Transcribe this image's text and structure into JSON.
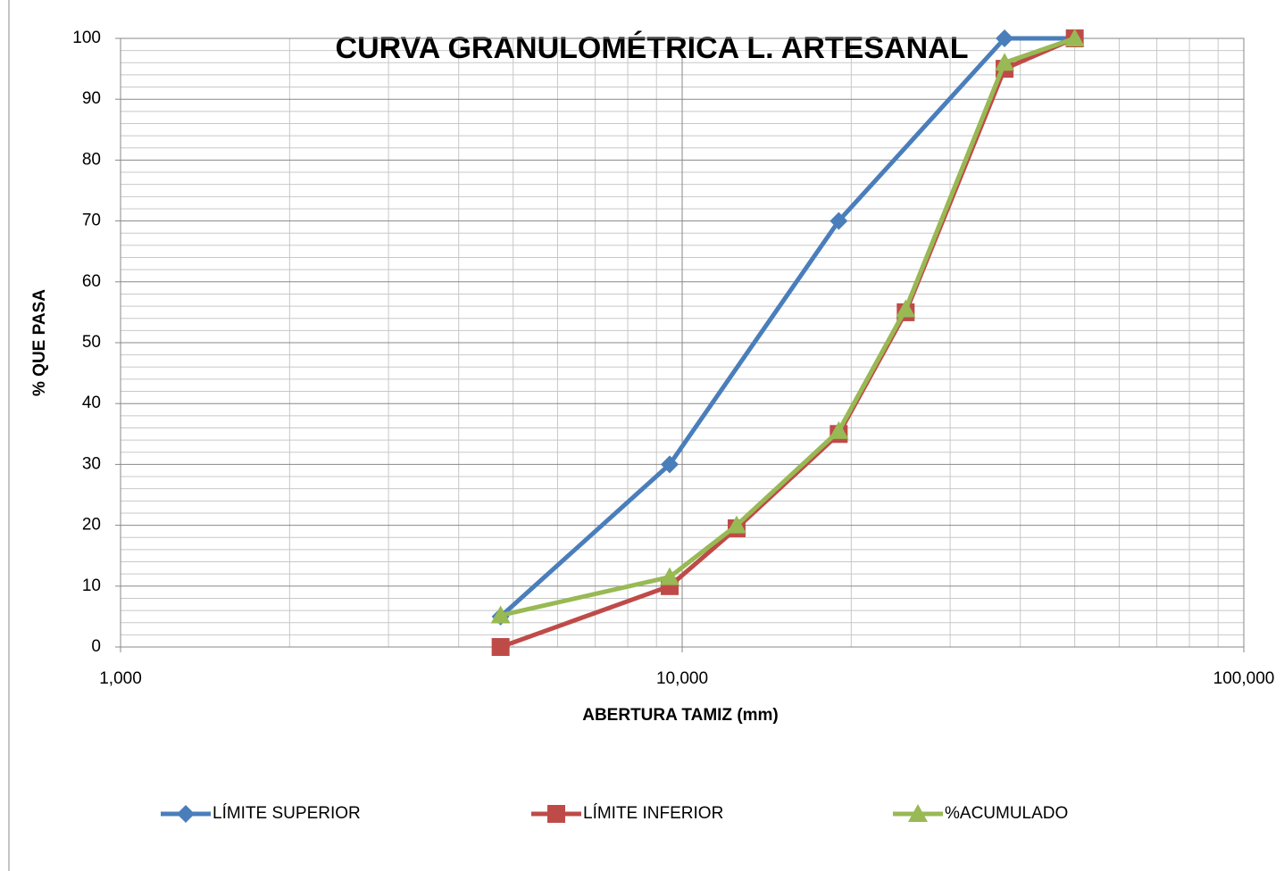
{
  "chart_data": {
    "type": "line",
    "title": "CURVA GRANULOMÉTRICA L. ARTESANAL",
    "x_label": "ABERTURA TAMIZ (mm)",
    "y_label": "% QUE PASA",
    "x_scale": "log",
    "xlim": [
      1,
      100
    ],
    "xticks": [
      {
        "value": 1,
        "label": "1,000"
      },
      {
        "value": 10,
        "label": "10,000"
      },
      {
        "value": 100,
        "label": "100,000"
      }
    ],
    "ylim": [
      0,
      100
    ],
    "yticks": [
      0,
      10,
      20,
      30,
      40,
      50,
      60,
      70,
      80,
      90,
      100
    ],
    "grid": true,
    "legend": "bottom",
    "series": [
      {
        "name": "LÍMITE SUPERIOR",
        "color": "#4a7ebb",
        "marker": "diamond",
        "x": [
          4.75,
          9.5,
          19,
          37.5,
          50
        ],
        "values": [
          5,
          30,
          70,
          100,
          100
        ]
      },
      {
        "name": "LÍMITE INFERIOR",
        "color": "#be4b48",
        "marker": "square",
        "x": [
          4.75,
          9.5,
          12.5,
          19,
          25,
          37.5,
          50
        ],
        "values": [
          0,
          10,
          19.5,
          35,
          55,
          95,
          100
        ]
      },
      {
        "name": "%ACUMULADO",
        "color": "#98b954",
        "marker": "triangle",
        "x": [
          4.75,
          9.5,
          12.5,
          19,
          25,
          37.5,
          50
        ],
        "values": [
          5.2,
          11.5,
          20,
          35.5,
          55.5,
          96,
          100
        ]
      }
    ]
  }
}
